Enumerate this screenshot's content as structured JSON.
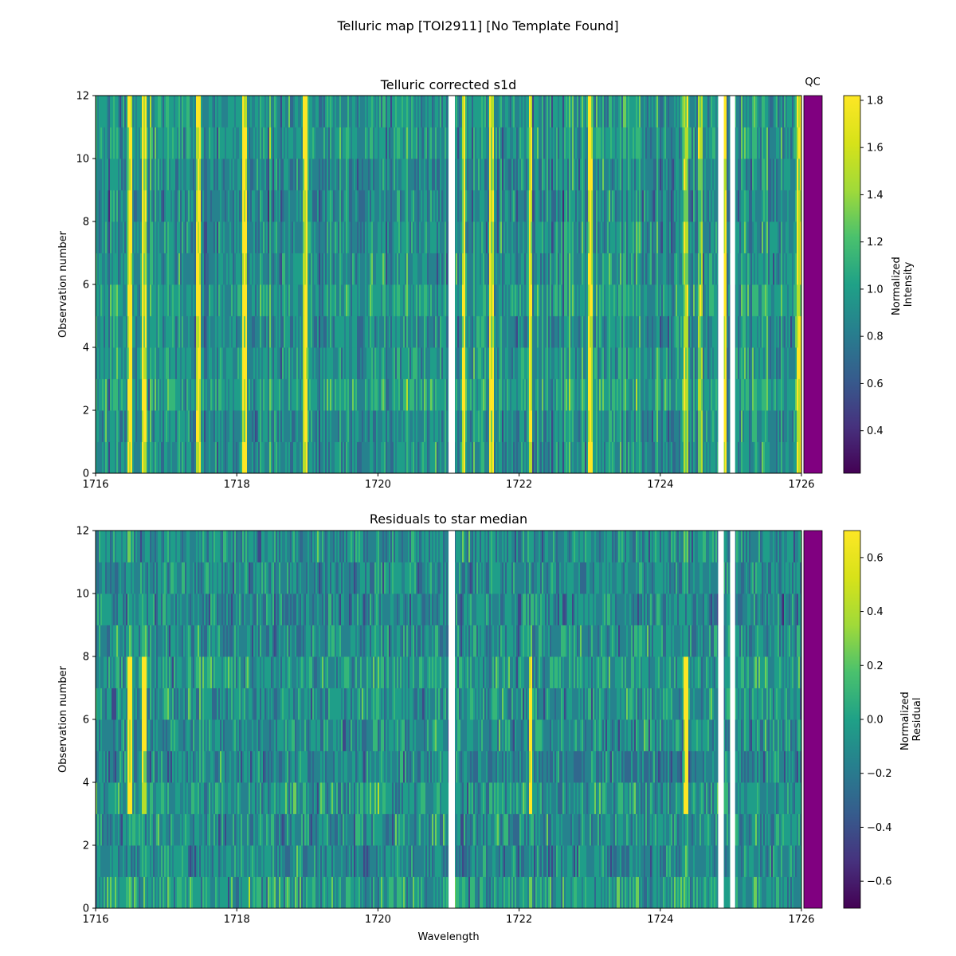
{
  "figure": {
    "suptitle": "Telluric map [TOI2911] [No Template Found]"
  },
  "colors": {
    "qc_bar": "#800080",
    "colormap": "viridis",
    "gap": "#ffffff"
  },
  "chart_data": [
    {
      "type": "heatmap",
      "title": "Telluric corrected s1d",
      "xlabel": "",
      "ylabel": "Observation number",
      "xlim": [
        1716,
        1726
      ],
      "ylim": [
        0,
        12
      ],
      "xticks": [
        "1716",
        "1718",
        "1720",
        "1722",
        "1724",
        "1726"
      ],
      "yticks": [
        "0",
        "2",
        "4",
        "6",
        "8",
        "10",
        "12"
      ],
      "rows": 12,
      "gaps": [
        [
          1721.0,
          1721.09
        ],
        [
          1724.82,
          1724.9
        ],
        [
          1724.99,
          1725.06
        ]
      ],
      "bright_lines": [
        1716.48,
        1716.68,
        1717.45,
        1718.1,
        1718.95,
        1721.2,
        1721.6,
        1722.15,
        1723.0,
        1724.35,
        1724.55,
        1724.9,
        1725.95
      ],
      "colorbar": {
        "label_lines": [
          "Normalized",
          "Intensity"
        ],
        "ticks": [
          "0.4",
          "0.6",
          "0.8",
          "1.0",
          "1.2",
          "1.4",
          "1.6",
          "1.8"
        ],
        "range": [
          0.22,
          1.82
        ]
      },
      "qc": {
        "label": "QC",
        "status": "pass"
      }
    },
    {
      "type": "heatmap",
      "title": "Residuals to star median",
      "xlabel": "Wavelength",
      "ylabel": "Observation number",
      "xlim": [
        1716,
        1726
      ],
      "ylim": [
        0,
        12
      ],
      "xticks": [
        "1716",
        "1718",
        "1720",
        "1722",
        "1724",
        "1726"
      ],
      "yticks": [
        "0",
        "2",
        "4",
        "6",
        "8",
        "10",
        "12"
      ],
      "rows": 12,
      "gaps": [
        [
          1721.0,
          1721.09
        ],
        [
          1724.82,
          1724.9
        ],
        [
          1724.99,
          1725.06
        ]
      ],
      "bright_lines": [
        1716.48,
        1716.68,
        1722.15,
        1724.35
      ],
      "colorbar": {
        "label_lines": [
          "Normalized",
          "Residual"
        ],
        "ticks": [
          "−0.6",
          "−0.4",
          "−0.2",
          "0.0",
          "0.2",
          "0.4",
          "0.6"
        ],
        "range": [
          -0.7,
          0.7
        ]
      },
      "qc": {
        "label": "",
        "status": "pass"
      }
    }
  ]
}
